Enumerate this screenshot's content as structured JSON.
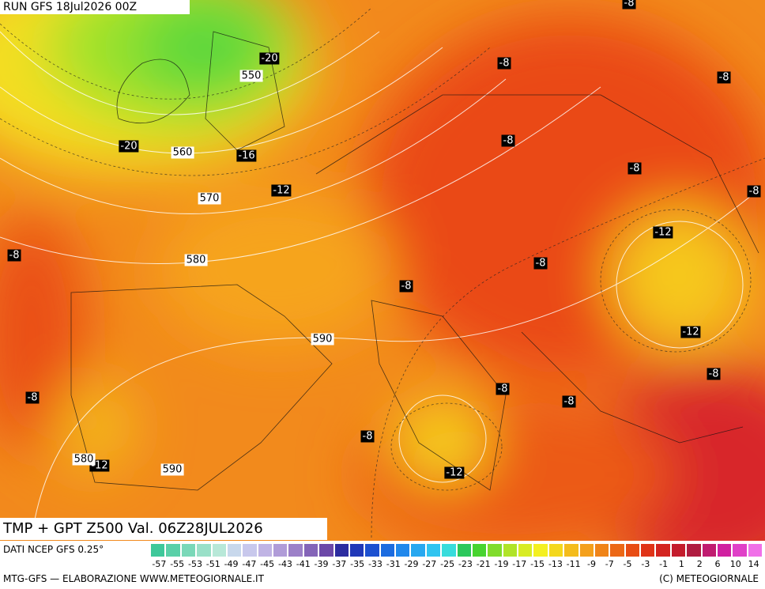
{
  "header": {
    "run": "RUN GFS 18Jul2026 00Z"
  },
  "map": {
    "temperature_labels": [
      "-8",
      "-20",
      "-8",
      "-8",
      "-20",
      "-16",
      "-8",
      "-8",
      "-12",
      "-8",
      "-8",
      "-12",
      "-8",
      "-8",
      "-12",
      "-8",
      "-8",
      "-8",
      "-8",
      "-8",
      "-12",
      "-12"
    ],
    "height_labels": [
      "550",
      "560",
      "570",
      "580",
      "590",
      "580",
      "590"
    ],
    "caption": "TMP + GPT Z500 Val. 06Z28JUL2026"
  },
  "legend": {
    "source": "DATI NCEP GFS 0.25°",
    "scale_labels": [
      "-57",
      "-55",
      "-53",
      "-51",
      "-49",
      "-47",
      "-45",
      "-43",
      "-41",
      "-39",
      "-37",
      "-35",
      "-33",
      "-31",
      "-29",
      "-27",
      "-25",
      "-23",
      "-21",
      "-19",
      "-17",
      "-15",
      "-13",
      "-11",
      "-9",
      "-7",
      "-5",
      "-3",
      "-1",
      "1",
      "2",
      "6",
      "10",
      "14"
    ]
  },
  "footer": {
    "left": "MTG-GFS — ELABORAZIONE WWW.METEOGIORNALE.IT",
    "right": "(C) METEOGIORNALE"
  }
}
